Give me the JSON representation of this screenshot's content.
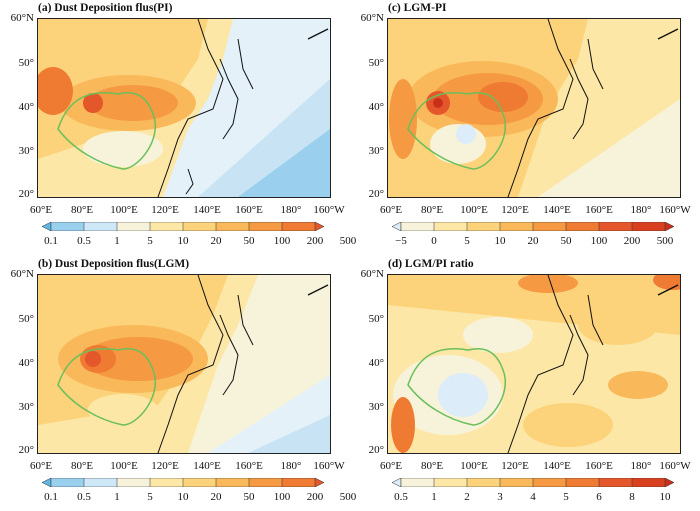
{
  "panels": [
    {
      "id": "a",
      "title": "(a) Dust Deposition flus(PI)",
      "colorbar": [
        "0.1",
        "0.5",
        "1",
        "5",
        "10",
        "20",
        "50",
        "100",
        "200",
        "500"
      ],
      "palette": [
        "#5fb8e4",
        "#9ad0ee",
        "#cfe8f7",
        "#f7f3da",
        "#fde7a6",
        "#fcd37a",
        "#f9b95a",
        "#f59a43",
        "#ef7b33",
        "#e4572a"
      ],
      "y_ticks": [
        "60°N",
        "50°",
        "40°",
        "30°",
        "20°"
      ],
      "x_ticks": [
        "60°E",
        "80°E",
        "100°E",
        "120°E",
        "140°E",
        "160°E",
        "180°",
        "160°W"
      ]
    },
    {
      "id": "c",
      "title": "(c) LGM-PI",
      "colorbar": [
        "−5",
        "0",
        "5",
        "10",
        "20",
        "50",
        "100",
        "200",
        "500"
      ],
      "palette": [
        "#dcecf8",
        "#f7f3da",
        "#fde7a6",
        "#fcd37a",
        "#f9b95a",
        "#f59a43",
        "#ef7b33",
        "#e4572a",
        "#d9401f",
        "#c9301a"
      ],
      "y_ticks": [
        "60°N",
        "50°",
        "40°",
        "30°",
        "20°"
      ],
      "x_ticks": [
        "60°E",
        "80°E",
        "100°E",
        "120°E",
        "140°E",
        "160°E",
        "180°",
        "160°W"
      ]
    },
    {
      "id": "b",
      "title": "(b) Dust Deposition flus(LGM)",
      "colorbar": [
        "0.1",
        "0.5",
        "1",
        "5",
        "10",
        "20",
        "50",
        "100",
        "200",
        "500"
      ],
      "palette": [
        "#5fb8e4",
        "#9ad0ee",
        "#cfe8f7",
        "#f7f3da",
        "#fde7a6",
        "#fcd37a",
        "#f9b95a",
        "#f59a43",
        "#ef7b33",
        "#e4572a"
      ],
      "y_ticks": [
        "60°N",
        "50°",
        "40°",
        "30°",
        "20°"
      ],
      "x_ticks": [
        "60°E",
        "80°E",
        "100°E",
        "120°E",
        "140°E",
        "160°E",
        "180°",
        "160°W"
      ]
    },
    {
      "id": "d",
      "title": "(d) LGM/PI ratio",
      "colorbar": [
        "0.5",
        "1",
        "2",
        "3",
        "4",
        "5",
        "6",
        "8",
        "10"
      ],
      "palette": [
        "#dcecf8",
        "#f7f3da",
        "#fde7a6",
        "#fcd37a",
        "#f9b95a",
        "#f59a43",
        "#ef7b33",
        "#e4572a",
        "#d9401f",
        "#c9301a"
      ],
      "y_ticks": [
        "60°N",
        "50°",
        "40°",
        "30°",
        "20°"
      ],
      "x_ticks": [
        "60°E",
        "80°E",
        "100°E",
        "120°E",
        "140°E",
        "160°E",
        "180°",
        "160°W"
      ]
    }
  ],
  "colors": {
    "coast": "#111111",
    "basin_outline": "#6abf5a",
    "ocean_low_a": "#c8e4f4",
    "ocean_low_b": "#e4f1f9",
    "background": "#ffffff"
  }
}
